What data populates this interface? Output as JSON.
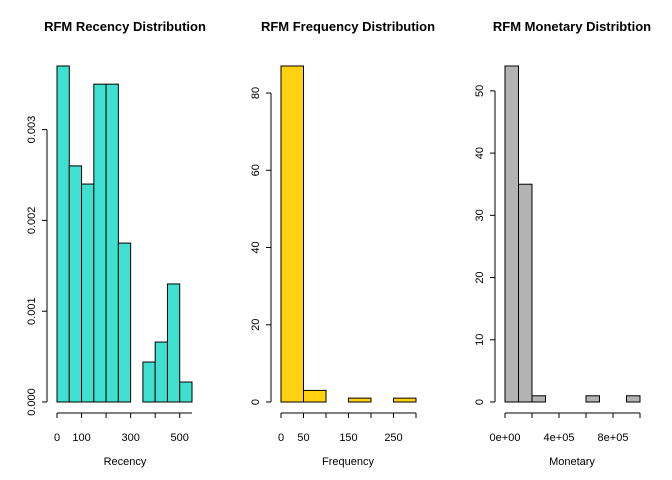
{
  "chart_data": [
    {
      "type": "bar",
      "title": "RFM Recency Distribution",
      "xlabel": "Recency",
      "ylabel": "",
      "color": "#40E0D0",
      "bin_edges": [
        0,
        50,
        100,
        150,
        200,
        250,
        300,
        350,
        400,
        450,
        500,
        550
      ],
      "values": [
        0.0037,
        0.0026,
        0.0024,
        0.0035,
        0.0035,
        0.00175,
        0.0,
        0.00044,
        0.00066,
        0.0013,
        0.00022
      ],
      "xlim": [
        0,
        550
      ],
      "ylim": [
        0,
        0.0037
      ],
      "xticks": [
        0,
        100,
        300,
        500
      ],
      "xtick_labels": [
        "0",
        "100",
        "300",
        "500"
      ],
      "yticks": [
        0,
        0.001,
        0.002,
        0.003
      ],
      "ytick_labels": [
        "0.000",
        "0.001",
        "0.002",
        "0.003"
      ]
    },
    {
      "type": "bar",
      "title": "RFM Frequency Distribution",
      "xlabel": "Frequency",
      "ylabel": "",
      "color": "#FFD10F",
      "bin_edges": [
        0,
        50,
        100,
        150,
        200,
        250,
        300
      ],
      "values": [
        87,
        3,
        0,
        1,
        0,
        1
      ],
      "xlim": [
        0,
        300
      ],
      "ylim": [
        0,
        87
      ],
      "xticks": [
        0,
        50,
        150,
        250
      ],
      "xtick_labels": [
        "0",
        "50",
        "150",
        "250"
      ],
      "yticks": [
        0,
        20,
        40,
        60,
        80
      ],
      "ytick_labels": [
        "0",
        "20",
        "40",
        "60",
        "80"
      ]
    },
    {
      "type": "bar",
      "title": "RFM Monetary Distribtion",
      "xlabel": "Monetary",
      "ylabel": "",
      "color": "#B3B3B3",
      "bin_edges": [
        0,
        100000,
        200000,
        300000,
        400000,
        500000,
        600000,
        700000,
        800000,
        900000,
        1000000
      ],
      "values": [
        54,
        35,
        1,
        0,
        0,
        0,
        1,
        0,
        0,
        1
      ],
      "xlim": [
        0,
        1000000
      ],
      "ylim": [
        0,
        54
      ],
      "xticks": [
        0,
        400000,
        800000
      ],
      "xtick_labels": [
        "0e+00",
        "4e+05",
        "8e+05"
      ],
      "yticks": [
        0,
        10,
        20,
        30,
        40,
        50
      ],
      "ytick_labels": [
        "0",
        "10",
        "20",
        "30",
        "40",
        "50"
      ]
    }
  ]
}
